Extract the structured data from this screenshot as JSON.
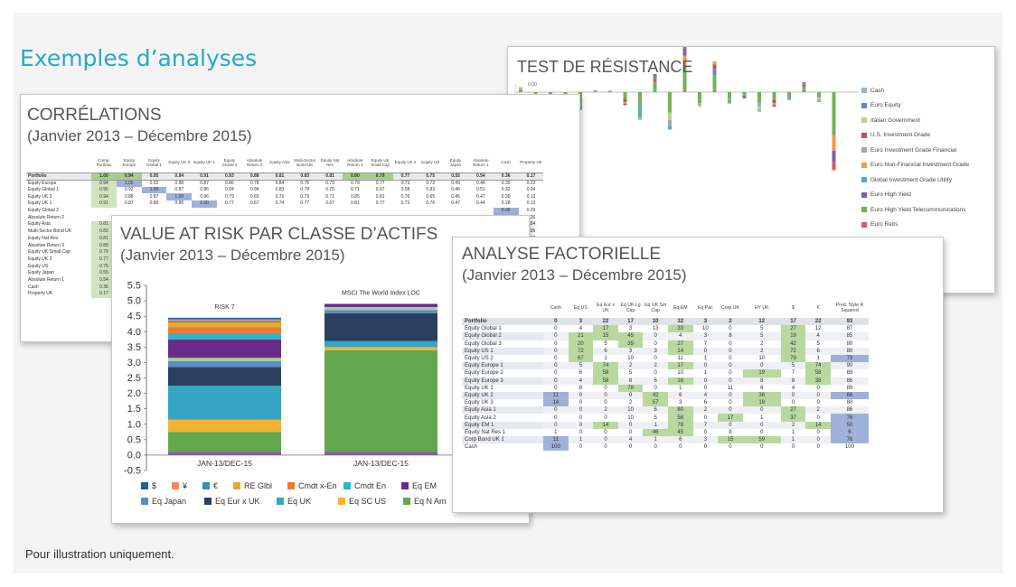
{
  "page": {
    "title": "Exemples d’analyses",
    "footnote": "Pour illustration uniquement."
  },
  "colors": {
    "accent": "#27a9c5",
    "highlight_green": "#a8cf8a",
    "highlight_blue": "#9fb1d8"
  },
  "chart_data": [
    {
      "type": "bar",
      "title": "TEST DE RÉSISTANCE",
      "y_tick_top": "0.00",
      "legend": [
        {
          "name": "Cash",
          "color": "#8fb3d9"
        },
        {
          "name": "Euro Equity",
          "color": "#5b8cc8"
        },
        {
          "name": "Italian Government",
          "color": "#b9d38d"
        },
        {
          "name": "U.S. Investment Grade",
          "color": "#c0504d"
        },
        {
          "name": "Euro Investment Grade Financial",
          "color": "#a6a6a6"
        },
        {
          "name": "Euro Non-Financial Investment Grade",
          "color": "#f79646"
        },
        {
          "name": "Global Investment Grade Utility",
          "color": "#4bacc6"
        },
        {
          "name": "Euro High Yield",
          "color": "#7f5fa8"
        },
        {
          "name": "Euro High Yield Telecommunications",
          "color": "#77b05a"
        },
        {
          "name": "Euro Reits",
          "color": "#e0565b"
        }
      ],
      "values": [
        0.3,
        -0.9,
        -1.6,
        -0.5,
        -1.1,
        0.1,
        0.1,
        -0.8,
        -1.7,
        1.1,
        -2.3,
        3.0,
        -0.9,
        1.9,
        -0.7,
        -0.4,
        -1.2,
        -0.9,
        -0.5,
        0.6,
        -0.6,
        -4.8
      ]
    },
    {
      "type": "bar",
      "stacked": true,
      "title": "VALUE AT RISK PAR CLASSE D’ACTIFS",
      "subtitle": "(Janvier 2013 – Décembre 2015)",
      "categories": [
        "JAN-13/DEC-15",
        "JAN-13/DEC-15"
      ],
      "bar_titles": [
        "RISK 7",
        "MSCI The World Index LOC"
      ],
      "ylim": [
        -0.5,
        5.5
      ],
      "yticks": [
        "5.5",
        "5.0",
        "4.5",
        "4.0",
        "3.5",
        "3.0",
        "2.5",
        "2.0",
        "1.5",
        "1.0",
        "0.5",
        "0.0",
        "-0.5"
      ],
      "series": [
        {
          "name": "$",
          "color": "#1f5fa8",
          "values": [
            0.05,
            0.0
          ]
        },
        {
          "name": "¥",
          "color": "#f08a5d",
          "values": [
            0.05,
            0.0
          ]
        },
        {
          "name": "€",
          "color": "#3a8fb7",
          "values": [
            0.05,
            0.0
          ]
        },
        {
          "name": "RE Glbl",
          "color": "#e8a92d",
          "values": [
            0.15,
            0.0
          ]
        },
        {
          "name": "Cmdt x-En",
          "color": "#ea7b33",
          "values": [
            0.2,
            0.0
          ]
        },
        {
          "name": "Cmdt En",
          "color": "#2eb3c8",
          "values": [
            0.2,
            0.0
          ]
        },
        {
          "name": "Eq EM",
          "color": "#6a2a8a",
          "values": [
            0.6,
            0.1
          ]
        },
        {
          "name": "",
          "color": "#a6d28a",
          "values": [
            0.1,
            0.1
          ]
        },
        {
          "name": "Eq Japan",
          "color": "#5a8cc6",
          "values": [
            0.2,
            0.1
          ]
        },
        {
          "name": "Eq Eur x UK",
          "color": "#2a3f5e",
          "values": [
            0.6,
            0.9
          ]
        },
        {
          "name": "Eq UK",
          "color": "#34a5c2",
          "values": [
            1.1,
            0.2
          ]
        },
        {
          "name": "Eq SC US",
          "color": "#f2b233",
          "values": [
            0.4,
            0.1
          ]
        },
        {
          "name": "Eq N Am",
          "color": "#63a84e",
          "values": [
            0.65,
            3.3
          ]
        },
        {
          "name": "",
          "color": "#8a5aa8",
          "values": [
            0.1,
            0.1
          ]
        }
      ]
    }
  ],
  "correlations": {
    "title": "CORRÉLATIONS",
    "subtitle": "(Janvier 2013 – Décembre 2015)",
    "columns": [
      "Comp. Portfolio",
      "Equity Europe",
      "Equity Global 1",
      "Equity UK 3",
      "Equity UK 1",
      "Equity Global 2",
      "Absolute Return 2",
      "Equity Asia",
      "Multi-Sector Bond UK",
      "Equity Nat Res",
      "Absolute Return 3",
      "Equity UK Small Cap",
      "Equity UK 2",
      "Equity US",
      "Equity Japan",
      "Absolute Return 1",
      "Cash",
      "Property UK"
    ],
    "portfolio_row": {
      "label": "Portfolio",
      "values": [
        "1.00",
        "0.94",
        "0.95",
        "0.94",
        "0.91",
        "0.93",
        "0.88",
        "0.81",
        "0.83",
        "0.81",
        "0.80",
        "0.79",
        "0.77",
        "0.75",
        "0.55",
        "0.54",
        "0.36",
        "0.17"
      ]
    },
    "rows": [
      {
        "label": "Equity Europe",
        "values": [
          "0.94",
          "1.00",
          "0.92",
          "0.88",
          "0.87",
          "0.86",
          "0.78",
          "0.84",
          "0.76",
          "0.79",
          "0.79",
          "0.77",
          "0.73",
          "0.72",
          "0.49",
          "0.46",
          "0.30",
          "0.22"
        ]
      },
      {
        "label": "Equity Global 1",
        "values": [
          "0.95",
          "0.92",
          "1.00",
          "0.87",
          "0.86",
          "0.84",
          "0.84",
          "0.83",
          "0.78",
          "0.75",
          "0.71",
          "0.67",
          "0.58",
          "0.83",
          "0.46",
          "0.51",
          "0.32",
          "0.04"
        ]
      },
      {
        "label": "Equity UK 3",
        "values": [
          "0.94",
          "0.88",
          "0.87",
          "1.00",
          "0.96",
          "0.79",
          "0.69",
          "0.76",
          "0.79",
          "0.71",
          "0.85",
          "0.81",
          "0.76",
          "0.65",
          "0.45",
          "0.47",
          "0.30",
          "0.13"
        ]
      },
      {
        "label": "Equity UK 1",
        "values": [
          "0.91",
          "0.87",
          "0.86",
          "0.96",
          "1.00",
          "0.77",
          "0.67",
          "0.74",
          "0.77",
          "0.67",
          "0.81",
          "0.77",
          "0.73",
          "0.76",
          "0.47",
          "0.44",
          "0.28",
          "0.12"
        ]
      },
      {
        "label": "Equity Global 2",
        "values": [
          "",
          "",
          "",
          "",
          "",
          "",
          "",
          "",
          "",
          "",
          "",
          "",
          "",
          "",
          "",
          "",
          "0.36",
          "0.29"
        ]
      },
      {
        "label": "Absolute Return 2",
        "values": [
          "",
          "",
          "",
          "",
          "",
          "",
          "",
          "",
          "",
          "",
          "",
          "",
          "",
          "",
          "",
          "",
          "0.38",
          "0.26"
        ]
      },
      {
        "label": "Equity Asia",
        "values": [
          "0.81",
          "",
          "",
          "",
          "",
          "",
          "",
          "",
          "",
          "",
          "",
          "",
          "",
          "",
          "",
          "",
          "0.24",
          "0.04"
        ]
      },
      {
        "label": "Multi-Sector Bond UK",
        "values": [
          "0.83",
          "",
          "",
          "",
          "",
          "",
          "",
          "",
          "",
          "",
          "",
          "",
          "",
          "",
          "",
          "",
          "0.38",
          "0.05"
        ]
      },
      {
        "label": "Equity Nat Res",
        "values": [
          "0.81",
          "",
          "",
          "",
          "",
          "",
          "",
          "",
          "",
          "",
          "",
          "",
          "",
          "",
          "",
          "",
          "0.32",
          "0.18"
        ]
      },
      {
        "label": "Absolute Return 3",
        "values": [
          "0.80",
          "",
          "",
          "",
          "",
          "",
          "",
          "",
          "",
          "",
          "",
          "",
          "",
          "",
          "",
          "",
          "",
          ""
        ]
      },
      {
        "label": "Equity UK Small Cap",
        "values": [
          "0.79",
          "",
          "",
          "",
          "",
          "",
          "",
          "",
          "",
          "",
          "",
          "",
          "",
          "",
          "",
          "",
          "",
          ""
        ]
      },
      {
        "label": "Equity UK 2",
        "values": [
          "0.77",
          "",
          "",
          "",
          "",
          "",
          "",
          "",
          "",
          "",
          "",
          "",
          "",
          "",
          "",
          "",
          "",
          ""
        ]
      },
      {
        "label": "Equity US",
        "values": [
          "0.75",
          "",
          "",
          "",
          "",
          "",
          "",
          "",
          "",
          "",
          "",
          "",
          "",
          "",
          "",
          "",
          "",
          ""
        ]
      },
      {
        "label": "Equity Japan",
        "values": [
          "0.55",
          "",
          "",
          "",
          "",
          "",
          "",
          "",
          "",
          "",
          "",
          "",
          "",
          "",
          "",
          "",
          "",
          ""
        ]
      },
      {
        "label": "Absolute Return 1",
        "values": [
          "0.54",
          "",
          "",
          "",
          "",
          "",
          "",
          "",
          "",
          "",
          "",
          "",
          "",
          "",
          "",
          "",
          "",
          ""
        ]
      },
      {
        "label": "Cash",
        "values": [
          "0.36",
          "",
          "",
          "",
          "",
          "",
          "",
          "",
          "",
          "",
          "",
          "",
          "",
          "",
          "",
          "",
          "",
          ""
        ]
      },
      {
        "label": "Property UK",
        "values": [
          "0.17",
          "",
          "",
          "",
          "",
          "",
          "",
          "",
          "",
          "",
          "",
          "",
          "",
          "",
          "",
          "",
          "",
          ""
        ]
      }
    ]
  },
  "factor": {
    "title": "ANALYSE FACTORIELLE",
    "subtitle": "(Janvier 2013 – Décembre 2015)",
    "columns": [
      "Cash",
      "Eq US",
      "Eq Eur x UK",
      "Eq UK Lg Cap",
      "Eq UK Sm Cap",
      "Eq EM",
      "Eq Pac",
      "Corp UK",
      "HY UK",
      "$",
      "€",
      "Pred. Style R Squared"
    ],
    "portfolio_row": {
      "label": "Portfolio",
      "values": [
        "0",
        "3",
        "22",
        "17",
        "10",
        "32",
        "3",
        "2",
        "12",
        "17",
        "22",
        "93"
      ]
    },
    "rows": [
      {
        "label": "Equity Global 1",
        "values": [
          "0",
          "4",
          "17",
          "3",
          "13",
          "33",
          "10",
          "0",
          "5",
          "27",
          "12",
          "87"
        ]
      },
      {
        "label": "Equity Global 2",
        "values": [
          "0",
          "21",
          "15",
          "45",
          "0",
          "4",
          "3",
          "8",
          "5",
          "19",
          "4",
          "85"
        ]
      },
      {
        "label": "Equity Global 3",
        "values": [
          "0",
          "20",
          "5",
          "39",
          "0",
          "27",
          "7",
          "0",
          "2",
          "42",
          "5",
          "80"
        ]
      },
      {
        "label": "Equity US 1",
        "values": [
          "0",
          "72",
          "6",
          "3",
          "3",
          "14",
          "0",
          "0",
          "2",
          "72",
          "6",
          "80"
        ]
      },
      {
        "label": "Equity US 2",
        "values": [
          "0",
          "67",
          "1",
          "10",
          "0",
          "11",
          "1",
          "0",
          "10",
          "79",
          "1",
          "73"
        ]
      },
      {
        "label": "Equity Europe 1",
        "values": [
          "0",
          "5",
          "74",
          "2",
          "2",
          "17",
          "0",
          "0",
          "0",
          "5",
          "74",
          "90"
        ]
      },
      {
        "label": "Equity Europe 2",
        "values": [
          "0",
          "6",
          "58",
          "5",
          "0",
          "10",
          "1",
          "0",
          "19",
          "7",
          "58",
          "89"
        ]
      },
      {
        "label": "Equity Europe 3",
        "values": [
          "0",
          "4",
          "58",
          "8",
          "6",
          "16",
          "0",
          "0",
          "8",
          "8",
          "38",
          "86"
        ]
      },
      {
        "label": "Equity UK 1",
        "values": [
          "0",
          "8",
          "0",
          "78",
          "0",
          "1",
          "0",
          "11",
          "6",
          "4",
          "0",
          "89"
        ]
      },
      {
        "label": "Equity UK 2",
        "values": [
          "11",
          "0",
          "0",
          "0",
          "42",
          "6",
          "4",
          "0",
          "36",
          "0",
          "0",
          "66"
        ]
      },
      {
        "label": "Equity UK 3",
        "values": [
          "14",
          "0",
          "0",
          "2",
          "57",
          "3",
          "6",
          "0",
          "18",
          "0",
          "0",
          "80"
        ]
      },
      {
        "label": "Equity Asia 1",
        "values": [
          "0",
          "0",
          "2",
          "10",
          "6",
          "80",
          "2",
          "0",
          "0",
          "27",
          "2",
          "86"
        ]
      },
      {
        "label": "Equity Asia 2",
        "values": [
          "0",
          "0",
          "0",
          "10",
          "5",
          "58",
          "0",
          "17",
          "1",
          "37",
          "0",
          "76"
        ]
      },
      {
        "label": "Equity EM 1",
        "values": [
          "0",
          "0",
          "14",
          "0",
          "1",
          "78",
          "7",
          "0",
          "0",
          "2",
          "14",
          "50"
        ]
      },
      {
        "label": "Equity Nat Res 1",
        "values": [
          "1",
          "0",
          "0",
          "0",
          "46",
          "45",
          "0",
          "8",
          "0",
          "1",
          "0",
          "6"
        ]
      },
      {
        "label": "Corp Bond UK 1",
        "values": [
          "11",
          "1",
          "0",
          "4",
          "1",
          "6",
          "3",
          "15",
          "59",
          "1",
          "0",
          "76"
        ]
      },
      {
        "label": "Cash",
        "values": [
          "100",
          "0",
          "0",
          "0",
          "0",
          "0",
          "0",
          "0",
          "0",
          "0",
          "0",
          "100"
        ]
      }
    ]
  }
}
